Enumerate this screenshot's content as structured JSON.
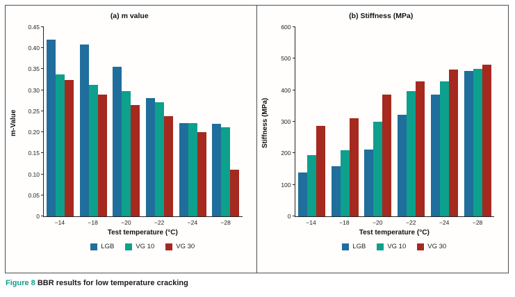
{
  "figure": {
    "caption_prefix": "Figure 8",
    "caption_text": " BBR results for low temperature cracking"
  },
  "colors": {
    "lgb": "#1f6e9c",
    "vg10": "#0da08c",
    "vg30": "#a5291f",
    "axis": "#222222",
    "panel_border": "#4d4d4d"
  },
  "chart_data": [
    {
      "type": "bar",
      "title": "(a) m value",
      "xlabel": "Test temperature (°C)",
      "ylabel": "m-Value",
      "ylim": [
        0,
        0.45
      ],
      "grid": false,
      "legend_position": "bottom",
      "yticks": [
        "0",
        "0.05",
        "0.10",
        "0.15",
        "0.20",
        "0.25",
        "0.30",
        "0.35",
        "0.40",
        "0.45"
      ],
      "categories": [
        "−14",
        "−18",
        "−20",
        "−22",
        "−24",
        "−28"
      ],
      "series": [
        {
          "name": "LGB",
          "color": "#1f6e9c",
          "values": [
            0.42,
            0.408,
            0.356,
            0.281,
            0.222,
            0.22
          ]
        },
        {
          "name": "VG 10",
          "color": "#0da08c",
          "values": [
            0.338,
            0.312,
            0.298,
            0.271,
            0.222,
            0.211
          ]
        },
        {
          "name": "VG 30",
          "color": "#a5291f",
          "values": [
            0.325,
            0.29,
            0.264,
            0.239,
            0.2,
            0.111
          ]
        }
      ]
    },
    {
      "type": "bar",
      "title": "(b) Stiffness (MPa)",
      "xlabel": "Test temperature (°C)",
      "ylabel": "Stiffness (MPa)",
      "ylim": [
        0,
        600
      ],
      "grid": false,
      "legend_position": "bottom",
      "yticks": [
        "0",
        "100",
        "200",
        "300",
        "400",
        "500",
        "600"
      ],
      "categories": [
        "−14",
        "−18",
        "−20",
        "−22",
        "−24",
        "−28"
      ],
      "series": [
        {
          "name": "LGB",
          "color": "#1f6e9c",
          "values": [
            138,
            158,
            212,
            321,
            385,
            461
          ]
        },
        {
          "name": "VG 10",
          "color": "#0da08c",
          "values": [
            195,
            209,
            300,
            398,
            428,
            468
          ]
        },
        {
          "name": "VG 30",
          "color": "#a5291f",
          "values": [
            286,
            311,
            386,
            428,
            466,
            482
          ]
        }
      ]
    }
  ]
}
